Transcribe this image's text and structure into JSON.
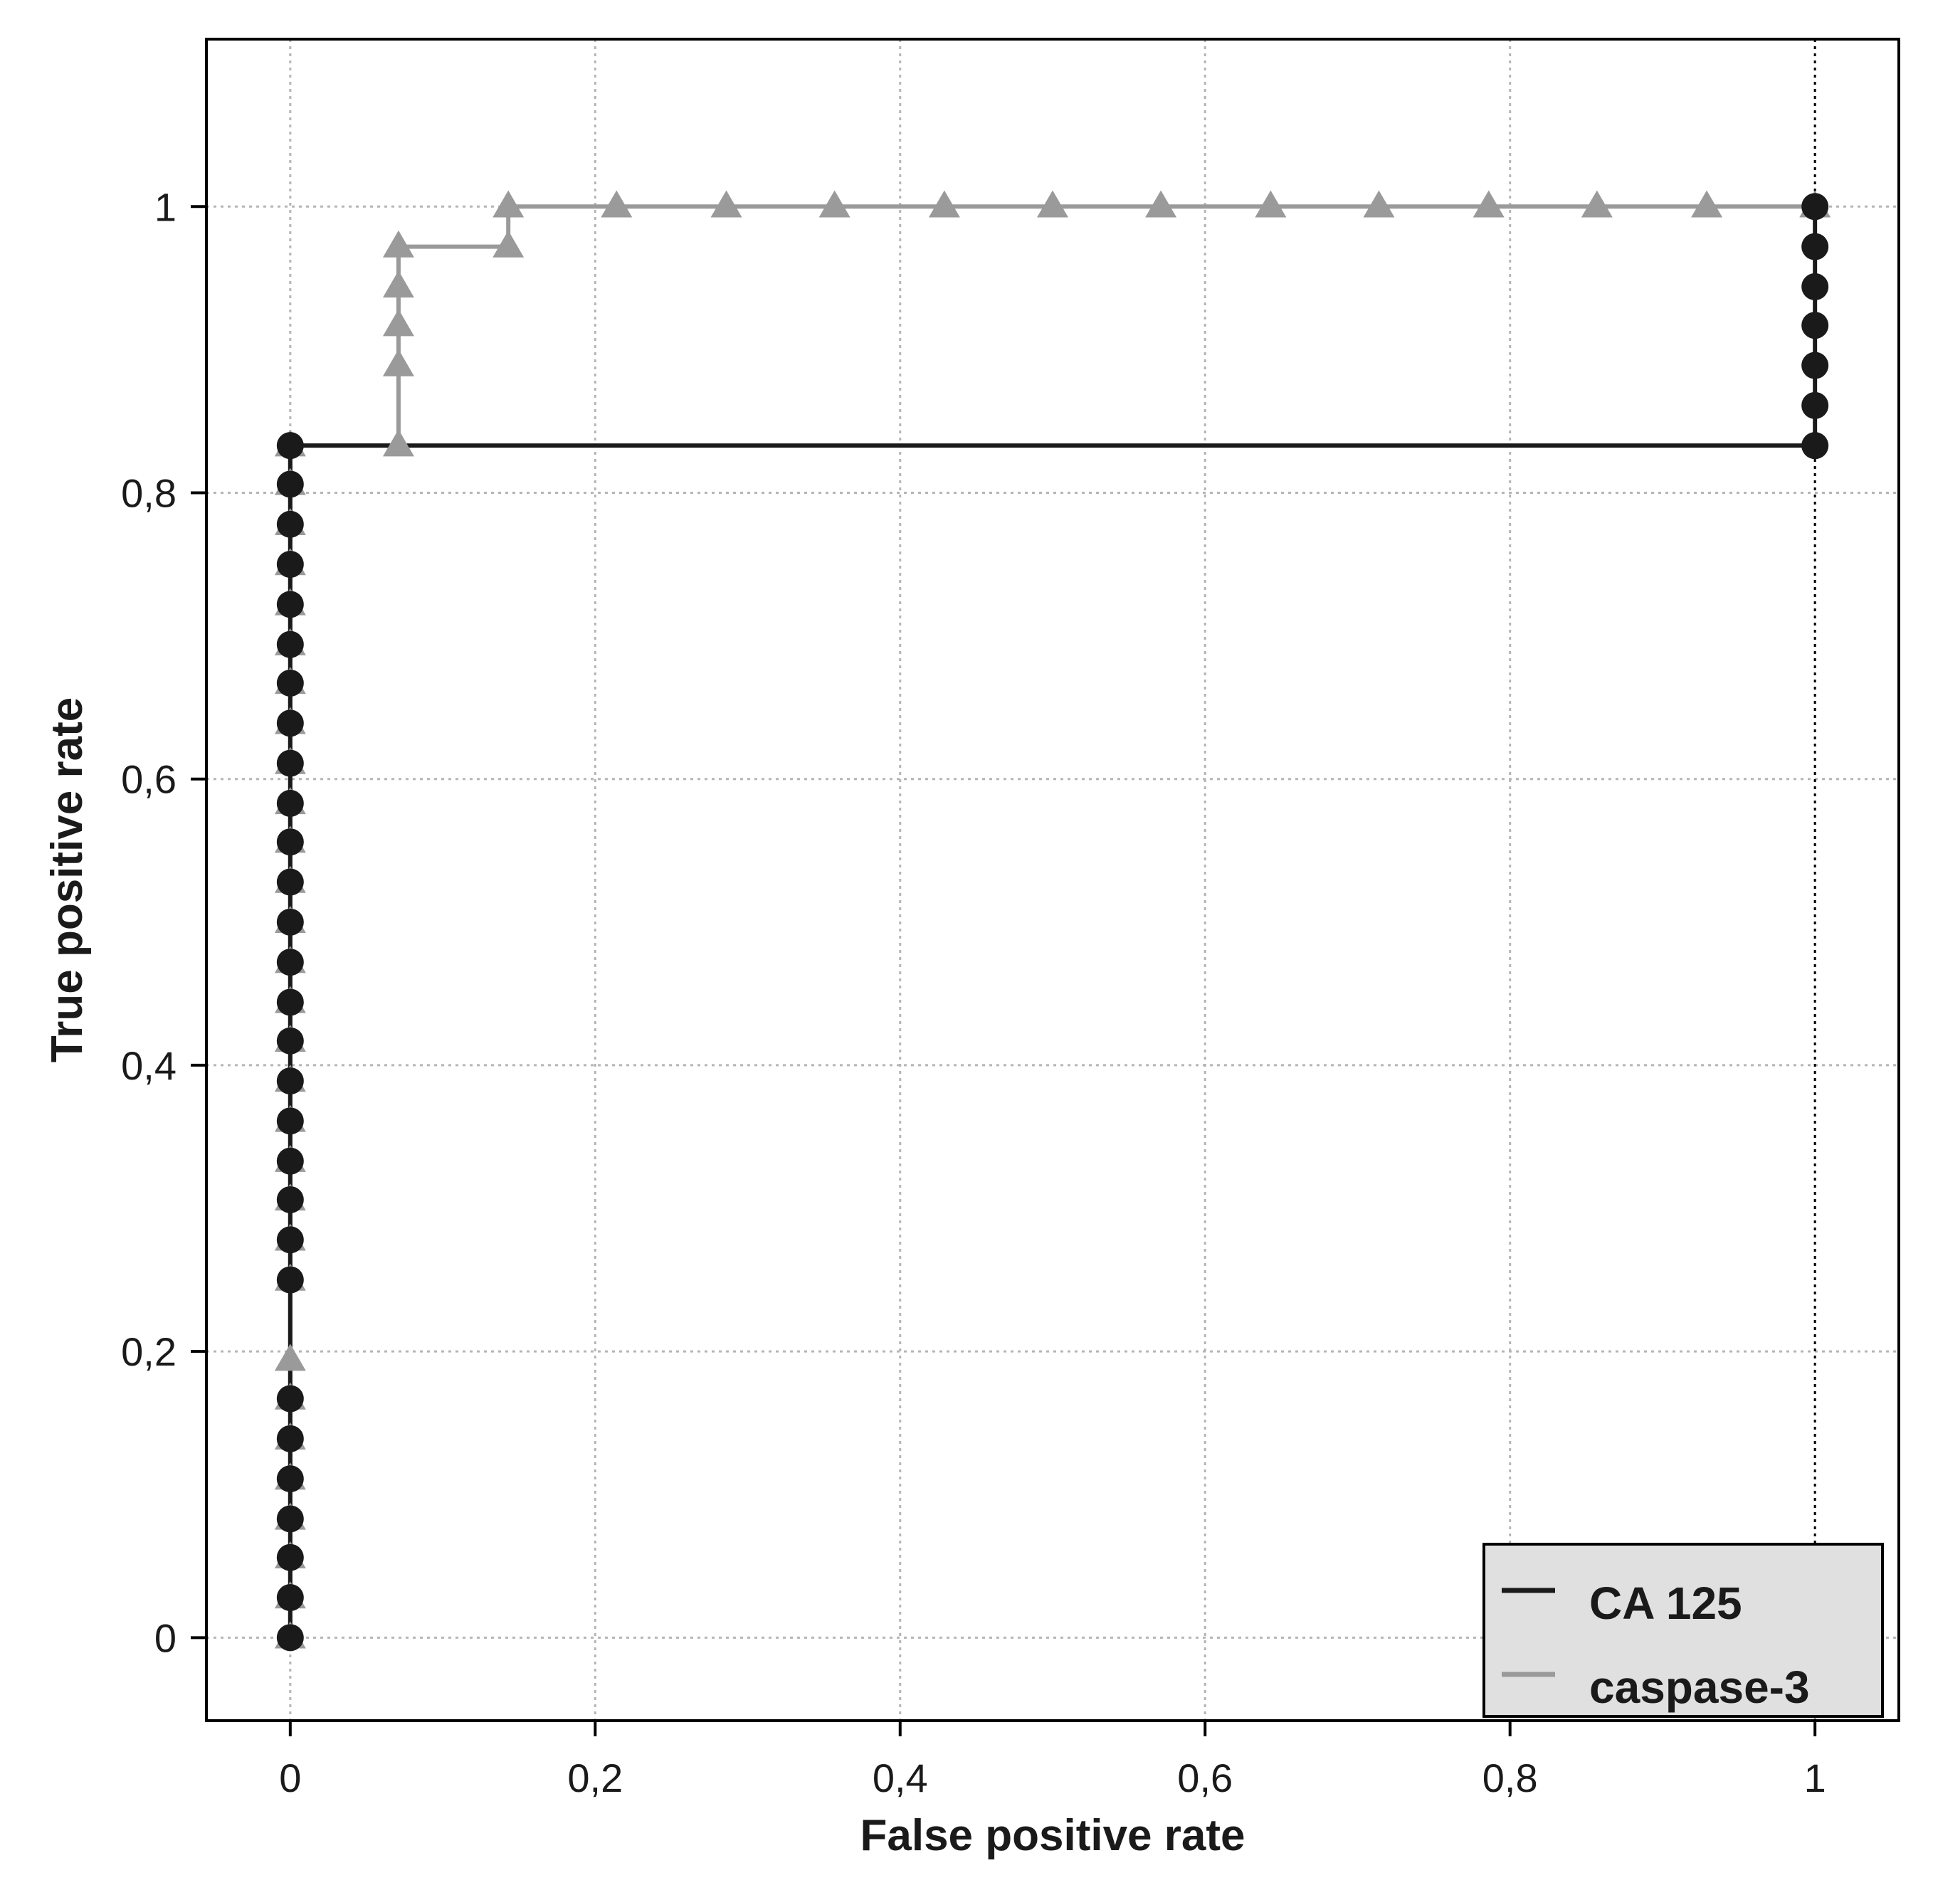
{
  "chart_data": {
    "type": "line",
    "title": "",
    "xlabel": "False positive rate",
    "ylabel": "True positive rate",
    "xlim": [
      -0.055,
      1.055
    ],
    "ylim": [
      -0.058,
      1.117
    ],
    "x_ticks": [
      0,
      0.2,
      0.4,
      0.6,
      0.8,
      1
    ],
    "x_tick_labels": [
      "0",
      "0,2",
      "0,4",
      "0,6",
      "0,8",
      "1"
    ],
    "y_ticks": [
      0,
      0.2,
      0.4,
      0.6,
      0.8,
      1
    ],
    "y_tick_labels": [
      "0",
      "0,2",
      "0,4",
      "0,6",
      "0,8",
      "1"
    ],
    "grid": true,
    "legend_position": "bottom-right",
    "reference_line_x": 1,
    "series": [
      {
        "name": "CA 125",
        "color": "#1a1a1a",
        "marker": "circle",
        "points": [
          [
            0,
            0
          ],
          [
            0,
            0.028
          ],
          [
            0,
            0.056
          ],
          [
            0,
            0.083
          ],
          [
            0,
            0.111
          ],
          [
            0,
            0.139
          ],
          [
            0,
            0.167
          ],
          [
            0,
            0.25
          ],
          [
            0,
            0.278
          ],
          [
            0,
            0.306
          ],
          [
            0,
            0.333
          ],
          [
            0,
            0.361
          ],
          [
            0,
            0.389
          ],
          [
            0,
            0.417
          ],
          [
            0,
            0.444
          ],
          [
            0,
            0.472
          ],
          [
            0,
            0.5
          ],
          [
            0,
            0.528
          ],
          [
            0,
            0.556
          ],
          [
            0,
            0.583
          ],
          [
            0,
            0.611
          ],
          [
            0,
            0.639
          ],
          [
            0,
            0.667
          ],
          [
            0,
            0.694
          ],
          [
            0,
            0.722
          ],
          [
            0,
            0.75
          ],
          [
            0,
            0.778
          ],
          [
            0,
            0.806
          ],
          [
            0,
            0.833
          ],
          [
            1,
            0.833
          ],
          [
            1,
            0.861
          ],
          [
            1,
            0.889
          ],
          [
            1,
            0.917
          ],
          [
            1,
            0.944
          ],
          [
            1,
            0.972
          ],
          [
            1,
            1
          ]
        ]
      },
      {
        "name": "caspase-3",
        "color": "#9a9a9a",
        "marker": "triangle",
        "points": [
          [
            0,
            0
          ],
          [
            0,
            0.028
          ],
          [
            0,
            0.056
          ],
          [
            0,
            0.083
          ],
          [
            0,
            0.111
          ],
          [
            0,
            0.139
          ],
          [
            0,
            0.167
          ],
          [
            0,
            0.194
          ],
          [
            0,
            0.25
          ],
          [
            0,
            0.278
          ],
          [
            0,
            0.306
          ],
          [
            0,
            0.333
          ],
          [
            0,
            0.361
          ],
          [
            0,
            0.389
          ],
          [
            0,
            0.417
          ],
          [
            0,
            0.444
          ],
          [
            0,
            0.472
          ],
          [
            0,
            0.5
          ],
          [
            0,
            0.528
          ],
          [
            0,
            0.556
          ],
          [
            0,
            0.583
          ],
          [
            0,
            0.611
          ],
          [
            0,
            0.639
          ],
          [
            0,
            0.667
          ],
          [
            0,
            0.694
          ],
          [
            0,
            0.722
          ],
          [
            0,
            0.75
          ],
          [
            0,
            0.778
          ],
          [
            0,
            0.806
          ],
          [
            0,
            0.833
          ],
          [
            0.071,
            0.833
          ],
          [
            0.071,
            0.889
          ],
          [
            0.071,
            0.917
          ],
          [
            0.071,
            0.944
          ],
          [
            0.071,
            0.972
          ],
          [
            0.143,
            0.972
          ],
          [
            0.143,
            1
          ],
          [
            0.214,
            1
          ],
          [
            0.286,
            1
          ],
          [
            0.357,
            1
          ],
          [
            0.429,
            1
          ],
          [
            0.5,
            1
          ],
          [
            0.571,
            1
          ],
          [
            0.643,
            1
          ],
          [
            0.714,
            1
          ],
          [
            0.786,
            1
          ],
          [
            0.857,
            1
          ],
          [
            0.929,
            1
          ],
          [
            1,
            1
          ]
        ]
      }
    ]
  }
}
